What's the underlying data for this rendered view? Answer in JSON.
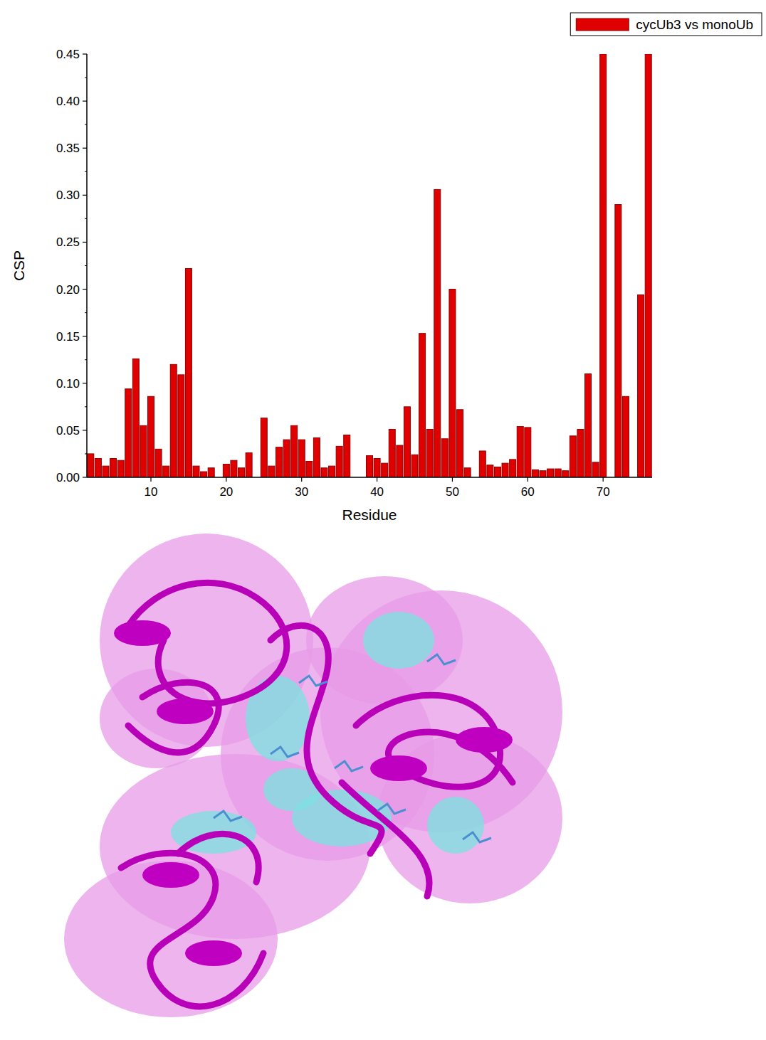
{
  "chart_data": {
    "type": "bar",
    "x_label": "Residue",
    "y_label": "CSP",
    "x": [
      2,
      3,
      4,
      5,
      6,
      7,
      8,
      9,
      10,
      11,
      12,
      13,
      14,
      15,
      16,
      17,
      18,
      19,
      20,
      21,
      22,
      23,
      24,
      25,
      26,
      27,
      28,
      29,
      30,
      31,
      32,
      33,
      34,
      35,
      36,
      37,
      38,
      39,
      40,
      41,
      42,
      43,
      44,
      45,
      46,
      47,
      48,
      49,
      50,
      51,
      52,
      53,
      54,
      55,
      56,
      57,
      58,
      59,
      60,
      61,
      62,
      63,
      64,
      65,
      66,
      67,
      68,
      69,
      70,
      71,
      72,
      73,
      74,
      75,
      76
    ],
    "series": [
      {
        "name": "cycUb3 vs monoUb",
        "color": "#e00000",
        "values": [
          0.025,
          0.02,
          0.012,
          0.02,
          0.018,
          0.094,
          0.126,
          0.055,
          0.086,
          0.03,
          0.012,
          0.12,
          0.109,
          0.222,
          0.012,
          0.006,
          0.01,
          null,
          0.014,
          0.018,
          0.01,
          0.026,
          null,
          0.063,
          0.012,
          0.032,
          0.04,
          0.055,
          0.04,
          0.017,
          0.042,
          0.01,
          0.012,
          0.033,
          0.045,
          null,
          null,
          0.023,
          0.02,
          0.015,
          0.051,
          0.034,
          0.075,
          0.024,
          0.153,
          0.051,
          0.306,
          0.041,
          0.2,
          0.072,
          0.01,
          null,
          0.028,
          0.013,
          0.011,
          0.015,
          0.019,
          0.054,
          0.053,
          0.008,
          0.007,
          0.009,
          0.009,
          0.007,
          0.044,
          0.051,
          0.11,
          0.016,
          0.45,
          null,
          0.29,
          0.086,
          null,
          0.194,
          0.45
        ]
      }
    ],
    "xlim": [
      1.5,
      76.5
    ],
    "xticks": [
      10,
      20,
      30,
      40,
      50,
      60,
      70
    ],
    "ylim": [
      0,
      0.45
    ],
    "yticks": [
      {
        "value": 0,
        "label": "0.00"
      },
      {
        "value": 0.05,
        "label": "0.05"
      },
      {
        "value": 0.1,
        "label": "0.10"
      },
      {
        "value": 0.15,
        "label": "0.15"
      },
      {
        "value": 0.2,
        "label": "0.20"
      },
      {
        "value": 0.25,
        "label": "0.25"
      },
      {
        "value": 0.3,
        "label": "0.30"
      },
      {
        "value": 0.35,
        "label": "0.35"
      },
      {
        "value": 0.4,
        "label": "0.40"
      },
      {
        "value": 0.45,
        "label": "0.45"
      }
    ],
    "legend": "top-right",
    "grid": false
  }
}
